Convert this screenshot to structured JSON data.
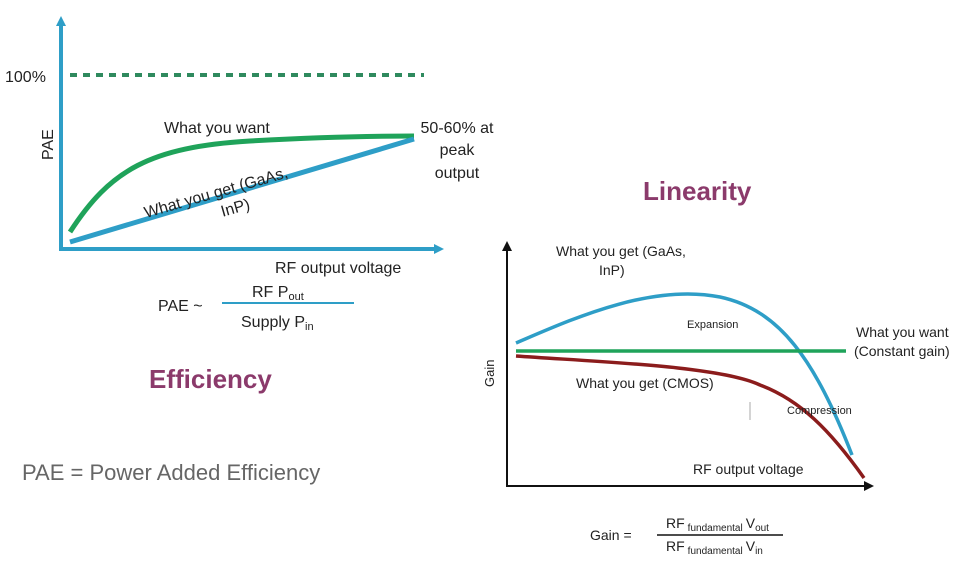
{
  "efficiency_panel": {
    "title": "Efficiency",
    "y_axis_label": "PAE",
    "y_marker_label": "100%",
    "x_axis_label": "RF output voltage",
    "curve_want_label": "What you want",
    "curve_get_label_line1": "What you get (GaAs,",
    "curve_get_label_line2": "InP)",
    "peak_note_line1": "50-60% at",
    "peak_note_line2": "peak",
    "peak_note_line3": "output",
    "formula": {
      "lhs": "PAE ~",
      "numerator_main": "RF P",
      "numerator_sub": "out",
      "denominator_main": "Supply P",
      "denominator_sub": "in"
    }
  },
  "linearity_panel": {
    "title": "Linearity",
    "y_axis_label": "Gain",
    "x_axis_label": "RF output voltage",
    "curve_gaas_label_line1": "What you get (GaAs,",
    "curve_gaas_label_line2": "InP)",
    "curve_want_label_line1": "What you want",
    "curve_want_label_line2": "(Constant gain)",
    "curve_cmos_label": "What you get (CMOS)",
    "expansion_label": "Expansion",
    "compression_label": "Compression",
    "formula": {
      "lhs": "Gain =",
      "num_main": "RF",
      "num_sub": "fundamental",
      "num_v": "V",
      "num_vsub": "out",
      "den_main": "RF",
      "den_sub": "fundamental",
      "den_v": "V",
      "den_vsub": "in"
    }
  },
  "footer_note": "PAE = Power Added Efficiency",
  "colors": {
    "axis": "#2e9ec7",
    "want_green": "#1fa35a",
    "gaas_blue": "#2e9ec7",
    "cmos_red": "#8b1c1c",
    "dotted": "#2f8a5e",
    "title": "#8b3a6b",
    "formula_line": "#2e9ec7"
  }
}
